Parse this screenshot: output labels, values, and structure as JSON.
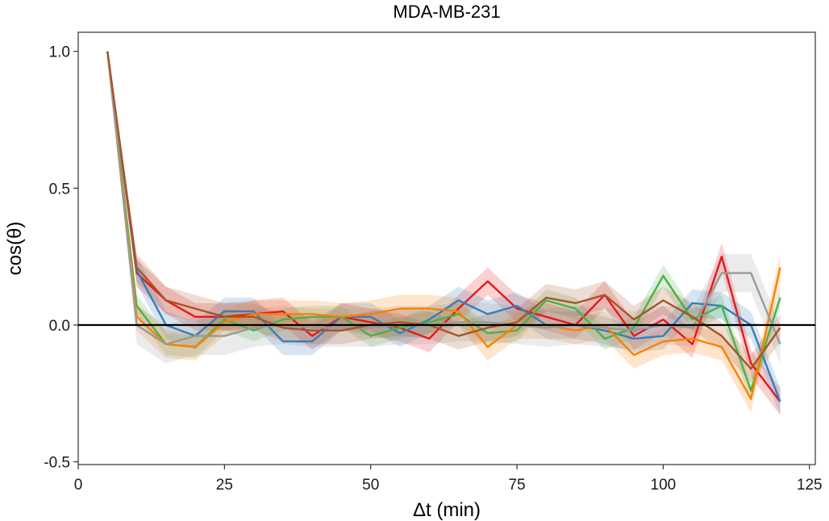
{
  "chart_data": {
    "type": "line",
    "title": "MDA-MB-231",
    "xlabel": "Δt (min)",
    "ylabel": "cos(θ)",
    "xlim": [
      0,
      126
    ],
    "ylim": [
      -0.51,
      1.07
    ],
    "x_ticks": [
      0,
      25,
      50,
      75,
      100,
      125
    ],
    "x_tick_labels": [
      "0",
      "25",
      "50",
      "75",
      "100",
      "125"
    ],
    "y_ticks": [
      -0.5,
      0.0,
      0.5,
      1.0
    ],
    "y_tick_labels": [
      "-0.5",
      "0.0",
      "0.5",
      "1.0"
    ],
    "reference_line": 0.0,
    "grid": false,
    "legend": "none",
    "x": [
      5,
      10,
      15,
      20,
      25,
      30,
      35,
      40,
      45,
      50,
      55,
      60,
      65,
      70,
      75,
      80,
      85,
      90,
      95,
      100,
      105,
      110,
      115,
      120
    ],
    "series": [
      {
        "color": "#e41a1c",
        "band": 0.05,
        "values": [
          1.0,
          0.19,
          0.09,
          0.03,
          0.03,
          0.04,
          0.05,
          -0.04,
          0.03,
          0.01,
          -0.01,
          -0.05,
          0.06,
          0.16,
          0.06,
          0.03,
          0.0,
          0.11,
          -0.04,
          0.02,
          -0.07,
          0.25,
          -0.14,
          -0.28
        ]
      },
      {
        "color": "#377eb8",
        "band": 0.05,
        "values": [
          1.0,
          0.2,
          0.0,
          -0.04,
          0.05,
          0.05,
          -0.06,
          -0.06,
          0.03,
          0.03,
          -0.03,
          0.02,
          0.09,
          0.04,
          0.07,
          0.0,
          0.0,
          -0.02,
          -0.05,
          -0.04,
          0.08,
          0.07,
          0.0,
          -0.28
        ]
      },
      {
        "color": "#4daf4a",
        "band": 0.04,
        "values": [
          1.0,
          0.07,
          -0.07,
          -0.08,
          0.02,
          -0.02,
          0.02,
          0.03,
          0.03,
          -0.04,
          -0.01,
          0.01,
          0.04,
          -0.03,
          -0.02,
          0.09,
          0.06,
          -0.05,
          -0.01,
          0.18,
          0.02,
          0.07,
          -0.24,
          0.1
        ]
      },
      {
        "color": "#ff7f00",
        "band": 0.05,
        "values": [
          1.0,
          0.03,
          -0.07,
          -0.08,
          0.01,
          0.04,
          0.04,
          0.04,
          0.03,
          0.04,
          0.06,
          0.06,
          0.05,
          -0.08,
          0.0,
          0.0,
          -0.02,
          0.0,
          -0.11,
          -0.06,
          -0.05,
          -0.08,
          -0.27,
          0.21
        ]
      },
      {
        "color": "#999999",
        "band": 0.07,
        "values": [
          1.0,
          0.0,
          -0.07,
          -0.04,
          -0.04,
          -0.01,
          0.0,
          -0.01,
          -0.01,
          -0.01,
          0.0,
          0.0,
          0.01,
          0.01,
          0.0,
          -0.01,
          0.0,
          -0.01,
          -0.02,
          0.0,
          -0.01,
          0.19,
          0.19,
          -0.07
        ]
      },
      {
        "color": "#a65628",
        "band": 0.05,
        "values": [
          1.0,
          0.21,
          0.09,
          0.06,
          0.03,
          0.03,
          -0.01,
          -0.02,
          -0.02,
          0.0,
          0.01,
          0.0,
          -0.04,
          -0.01,
          0.01,
          0.1,
          0.08,
          0.11,
          0.02,
          0.09,
          0.03,
          -0.04,
          -0.16,
          -0.01
        ]
      }
    ]
  }
}
